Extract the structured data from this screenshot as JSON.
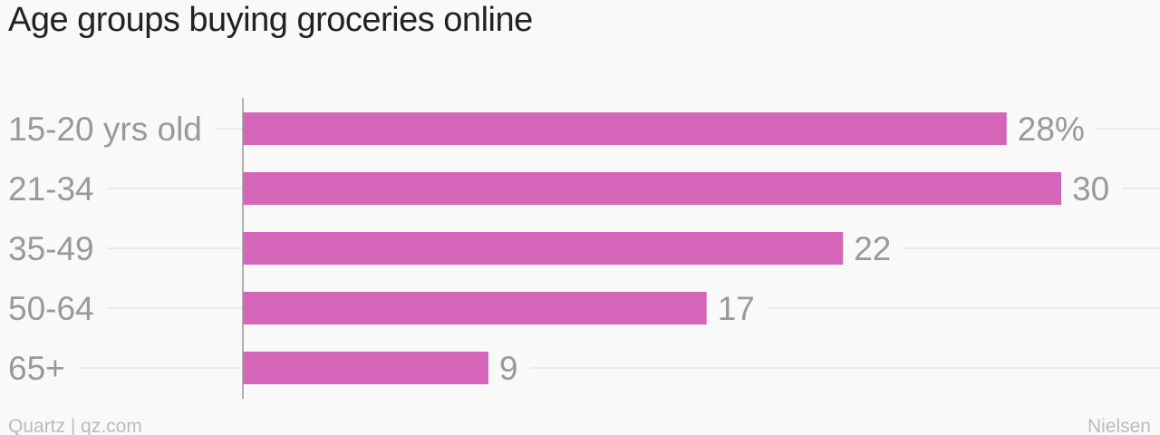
{
  "chart_data": {
    "type": "bar",
    "orientation": "horizontal",
    "title": "Age groups buying groceries online",
    "categories": [
      "15-20 yrs old",
      "21-34",
      "35-49",
      "50-64",
      "65+"
    ],
    "values": [
      28,
      30,
      22,
      17,
      9
    ],
    "value_labels": [
      "28%",
      "30",
      "22",
      "17",
      "9"
    ],
    "xlim": [
      0,
      30
    ],
    "grid": true,
    "bar_color": "#d465b8"
  },
  "footer": {
    "source_left": "Quartz | qz.com",
    "source_right": "Nielsen"
  }
}
